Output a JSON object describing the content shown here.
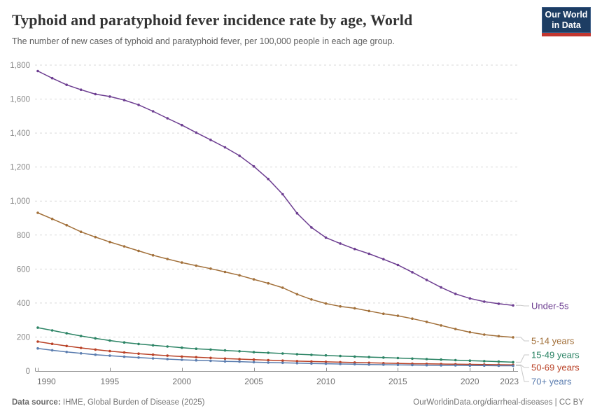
{
  "header": {
    "title": "Typhoid and paratyphoid fever incidence rate by age, World",
    "subtitle": "The number of new cases of typhoid and paratyphoid fever, per 100,000 people in each age group.",
    "logo_line1": "Our World",
    "logo_line2": "in Data"
  },
  "chart_data": {
    "type": "line",
    "title": "Typhoid and paratyphoid fever incidence rate by age, World",
    "subtitle": "The number of new cases of typhoid and paratyphoid fever, per 100,000 people in each age group.",
    "x": [
      1990,
      1991,
      1992,
      1993,
      1994,
      1995,
      1996,
      1997,
      1998,
      1999,
      2000,
      2001,
      2002,
      2003,
      2004,
      2005,
      2006,
      2007,
      2008,
      2009,
      2010,
      2011,
      2012,
      2013,
      2014,
      2015,
      2016,
      2017,
      2018,
      2019,
      2020,
      2021,
      2022,
      2023
    ],
    "x_ticks": [
      1990,
      1995,
      2000,
      2005,
      2010,
      2015,
      2020,
      2023
    ],
    "y_ticks": [
      0,
      200,
      400,
      600,
      800,
      1000,
      1200,
      1400,
      1600,
      1800
    ],
    "ylim": [
      0,
      1800
    ],
    "xlim": [
      1990,
      2023
    ],
    "grid": "horizontal-dashed",
    "legend_position": "right-end-labels",
    "marker": "dot",
    "series": [
      {
        "name": "Under-5s",
        "color": "#6D3E91",
        "values": [
          1765,
          1723,
          1684,
          1655,
          1629,
          1615,
          1594,
          1566,
          1528,
          1487,
          1447,
          1403,
          1360,
          1316,
          1267,
          1204,
          1130,
          1040,
          928,
          845,
          785,
          750,
          718,
          690,
          658,
          624,
          581,
          536,
          492,
          454,
          427,
          408,
          396,
          386
        ]
      },
      {
        "name": "5-14 years",
        "color": "#A2703A",
        "values": [
          931,
          895,
          858,
          819,
          788,
          759,
          733,
          707,
          681,
          659,
          638,
          620,
          602,
          583,
          563,
          539,
          516,
          490,
          452,
          421,
          397,
          380,
          369,
          353,
          337,
          325,
          308,
          289,
          268,
          247,
          228,
          214,
          205,
          198
        ]
      },
      {
        "name": "15-49 years",
        "color": "#2C8465",
        "values": [
          255,
          239,
          222,
          206,
          192,
          179,
          168,
          159,
          151,
          144,
          137,
          131,
          126,
          121,
          116,
          111,
          107,
          103,
          99,
          95,
          92,
          88,
          85,
          82,
          79,
          76,
          73,
          70,
          67,
          64,
          61,
          58,
          55,
          52
        ]
      },
      {
        "name": "50-69 years",
        "color": "#B94126",
        "values": [
          173,
          160,
          147,
          136,
          126,
          117,
          109,
          102,
          96,
          90,
          85,
          81,
          77,
          73,
          70,
          67,
          64,
          61,
          58,
          56,
          54,
          52,
          50,
          48,
          46,
          45,
          43,
          42,
          41,
          40,
          39,
          38,
          37,
          36
        ]
      },
      {
        "name": "70+ years",
        "color": "#5B7DAF",
        "values": [
          133,
          122,
          112,
          104,
          96,
          90,
          84,
          79,
          74,
          70,
          66,
          63,
          60,
          57,
          55,
          52,
          50,
          48,
          46,
          44,
          43,
          41,
          40,
          38,
          37,
          36,
          35,
          34,
          33,
          33,
          32,
          32,
          31,
          31
        ]
      }
    ]
  },
  "footer": {
    "datasource_label": "Data source:",
    "datasource_text": "IHME, Global Burden of Disease (2025)",
    "license_text": "OurWorldinData.org/diarrheal-diseases | CC BY"
  }
}
